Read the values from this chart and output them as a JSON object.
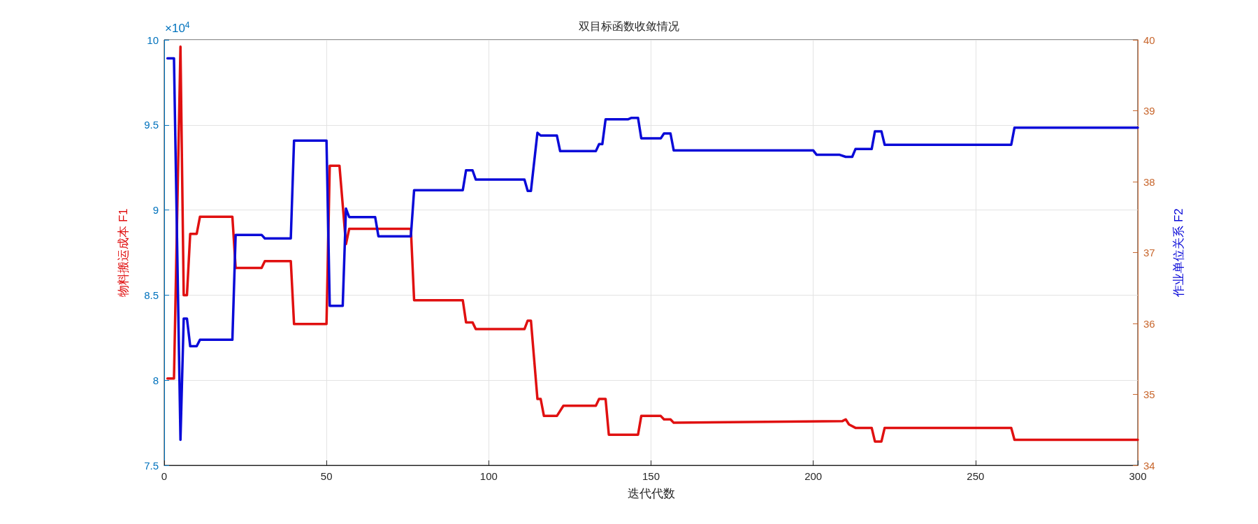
{
  "chart_data": {
    "type": "line",
    "title": "双目标函数收敛情况",
    "xlabel": "迭代代数",
    "ylabel": "物料搬运成本 F1",
    "y2label": "作业单位关系 F2",
    "annotations": [
      "×10$^{4}$"
    ],
    "xlim": [
      0,
      300
    ],
    "xticks": [
      0,
      50,
      100,
      150,
      200,
      250,
      300
    ],
    "ylim": [
      7.5,
      10
    ],
    "yticks": [
      7.5,
      8,
      8.5,
      9,
      9.5,
      10
    ],
    "y2lim": [
      34,
      40
    ],
    "y2ticks": [
      34,
      35,
      36,
      37,
      38,
      39,
      40
    ],
    "grid": true,
    "line_style": "solid",
    "series": [
      {
        "color": "#e01010",
        "x": [
          1,
          3,
          5,
          6,
          7,
          8,
          10,
          11,
          21,
          22,
          30,
          31,
          39,
          40,
          50,
          51,
          54,
          56,
          57,
          76,
          77,
          92,
          93,
          95,
          96,
          111,
          112,
          113,
          115,
          116,
          117,
          121,
          123,
          133,
          134,
          136,
          137,
          146,
          147,
          153,
          154,
          156,
          157,
          209,
          210,
          211,
          213,
          218,
          219,
          221,
          222,
          261,
          262,
          300
        ],
        "values": [
          8.01,
          8.01,
          9.96,
          8.5,
          8.5,
          8.86,
          8.86,
          8.96,
          8.96,
          8.66,
          8.66,
          8.7,
          8.7,
          8.33,
          8.33,
          9.26,
          9.26,
          8.8,
          8.89,
          8.89,
          8.47,
          8.47,
          8.34,
          8.34,
          8.3,
          8.3,
          8.35,
          8.35,
          7.89,
          7.89,
          7.79,
          7.79,
          7.85,
          7.85,
          7.89,
          7.89,
          7.68,
          7.68,
          7.79,
          7.79,
          7.77,
          7.77,
          7.75,
          7.76,
          7.77,
          7.74,
          7.72,
          7.72,
          7.64,
          7.64,
          7.72,
          7.72,
          7.65,
          7.65
        ]
      },
      {
        "color": "#0a0ad8",
        "axis": "y2",
        "x": [
          1,
          3,
          5,
          6,
          7,
          8,
          10,
          11,
          21,
          22,
          30,
          31,
          39,
          40,
          50,
          51,
          55,
          56,
          57,
          65,
          66,
          76,
          77,
          92,
          93,
          95,
          96,
          111,
          112,
          113,
          115,
          116,
          121,
          122,
          133,
          134,
          135,
          136,
          143,
          144,
          146,
          147,
          153,
          154,
          156,
          157,
          200,
          201,
          208,
          210,
          212,
          213,
          218,
          219,
          221,
          222,
          261,
          262,
          300
        ],
        "values": [
          39.74,
          39.74,
          34.36,
          36.07,
          36.07,
          35.68,
          35.68,
          35.77,
          35.77,
          37.25,
          37.25,
          37.2,
          37.2,
          38.58,
          38.58,
          36.25,
          36.25,
          37.62,
          37.5,
          37.5,
          37.23,
          37.23,
          37.88,
          37.88,
          38.16,
          38.16,
          38.03,
          38.03,
          37.87,
          37.87,
          38.69,
          38.65,
          38.65,
          38.43,
          38.43,
          38.53,
          38.53,
          38.88,
          38.88,
          38.9,
          38.9,
          38.61,
          38.61,
          38.68,
          38.68,
          38.44,
          38.44,
          38.38,
          38.38,
          38.35,
          38.35,
          38.46,
          38.46,
          38.71,
          38.71,
          38.52,
          38.52,
          38.76,
          38.76
        ]
      }
    ]
  }
}
